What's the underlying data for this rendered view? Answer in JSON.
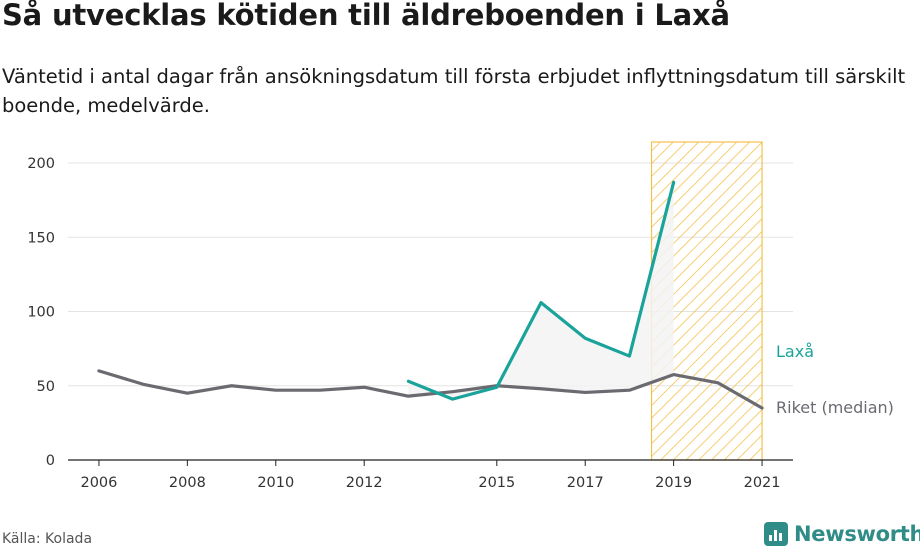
{
  "title": "Så utvecklas kötiden till äldreboenden i Laxå",
  "subtitle": "Väntetid i antal dagar från ansökningsdatum till första erbjudet inflyttningsdatum till särskilt boende, medelvärde.",
  "source": "Källa: Kolada",
  "brand": "Newsworthy",
  "colors": {
    "laxa": "#1aa39a",
    "riket": "#6b6a70",
    "highlight": "#f2c24e",
    "fill": "#f3f3f3",
    "grid": "#e3e3e3"
  },
  "chart_data": {
    "type": "line",
    "x": [
      2006,
      2007,
      2008,
      2009,
      2010,
      2011,
      2012,
      2013,
      2014,
      2015,
      2016,
      2017,
      2018,
      2019,
      2020,
      2021
    ],
    "xticks": [
      "2006",
      "2008",
      "2010",
      "2012",
      "2015",
      "2017",
      "2019",
      "2021"
    ],
    "yticks": [
      "0",
      "50",
      "100",
      "150",
      "200"
    ],
    "ylim": [
      0,
      200
    ],
    "xlim": [
      2005.3,
      2021.7
    ],
    "highlight_range": [
      2018.5,
      2021
    ],
    "series": [
      {
        "name": "Laxå",
        "color": "#1aa39a",
        "values": [
          null,
          null,
          null,
          null,
          null,
          null,
          null,
          53,
          41,
          49,
          106,
          82,
          70,
          187,
          null,
          null
        ]
      },
      {
        "name": "Riket (median)",
        "color": "#6b6a70",
        "values": [
          60,
          51,
          45,
          50,
          47,
          47,
          49,
          43,
          46,
          50,
          48,
          45.5,
          47,
          57.5,
          52,
          35
        ]
      }
    ]
  }
}
